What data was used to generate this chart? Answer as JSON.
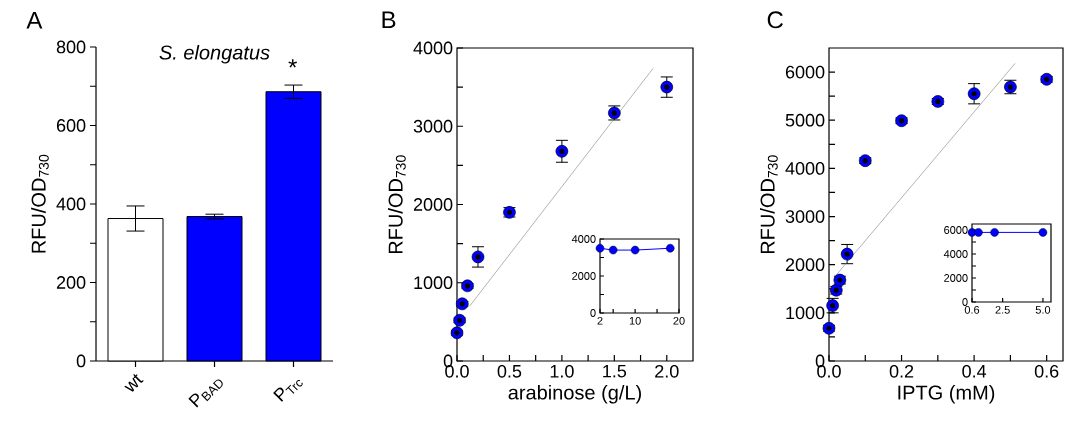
{
  "chart_data": [
    {
      "type": "bar",
      "title": "S. elongatus",
      "ylabel": "RFU/OD$_{730}$",
      "annotations": [
        "A",
        "*"
      ],
      "categories": [
        "wt",
        "P$_{BAD}$",
        "P$_{Trc}$"
      ],
      "values": [
        363,
        368,
        686
      ],
      "errors": [
        32,
        6,
        17
      ],
      "colors": [
        "#ffffff",
        "#0000ff",
        "#0000ff"
      ],
      "ylim": [
        0,
        800
      ],
      "yticks": [
        0,
        {
          "value": 100,
          "label": null
        },
        200,
        {
          "value": 300,
          "label": null
        },
        400,
        {
          "value": 500,
          "label": null
        },
        600,
        {
          "value": 700,
          "label": null
        },
        800
      ]
    },
    {
      "type": "scatter",
      "xlabel": "arabinose (g/L)",
      "ylabel": "RFU/OD$_{730}$",
      "annotations": [
        "B"
      ],
      "marker": "circle",
      "xlim": [
        0,
        2.25
      ],
      "ylim": [
        0,
        4000
      ],
      "xticks": [
        {
          "value": 0,
          "label": "0.0"
        },
        {
          "value": 0.25,
          "label": null
        },
        {
          "value": 0.5,
          "label": "0.5"
        },
        {
          "value": 0.75,
          "label": null
        },
        {
          "value": 1,
          "label": "1.0"
        },
        {
          "value": 1.25,
          "label": null
        },
        {
          "value": 1.5,
          "label": "1.5"
        },
        {
          "value": 1.75,
          "label": null
        },
        {
          "value": 2,
          "label": "2.0"
        }
      ],
      "yticks": [
        0,
        {
          "value": 500,
          "label": null
        },
        1000,
        {
          "value": 1500,
          "label": null
        },
        2000,
        {
          "value": 2500,
          "label": null
        },
        3000,
        {
          "value": 3500,
          "label": null
        },
        4000
      ],
      "series": [
        {
          "type": "scatter",
          "color": "#0000ff",
          "x": [
            0,
            0.025,
            0.05,
            0.1,
            0.2,
            0.5,
            1,
            1.5,
            2
          ],
          "values": [
            360,
            520,
            730,
            960,
            1330,
            1900,
            2680,
            3170,
            3500
          ],
          "errors": [
            30,
            30,
            30,
            30,
            130,
            60,
            140,
            90,
            130
          ]
        },
        {
          "type": "line",
          "marker": "none",
          "color": "#808080",
          "x": [
            0.12,
            1.87
          ],
          "values": [
            700,
            3740
          ]
        }
      ]
    },
    {
      "type": "line",
      "marker": "circle",
      "xlim": [
        2,
        20
      ],
      "ylim": [
        0,
        4000
      ],
      "xticks": [
        2,
        {
          "value": 5,
          "label": null
        },
        10,
        {
          "value": 15,
          "label": null
        },
        20
      ],
      "yticks": [
        0,
        {
          "value": 1000,
          "label": null
        },
        2000,
        {
          "value": 3000,
          "label": null
        },
        4000
      ],
      "series": [
        {
          "color": "#0000ff",
          "x": [
            2,
            5,
            10,
            18
          ],
          "values": [
            3500,
            3400,
            3400,
            3500
          ]
        }
      ]
    },
    {
      "type": "scatter",
      "xlabel": "IPTG (mM)",
      "ylabel": "RFU/OD$_{730}$",
      "annotations": [
        "C"
      ],
      "marker": "circle",
      "xlim": [
        0,
        0.645
      ],
      "ylim": [
        0,
        6500
      ],
      "xticks": [
        {
          "value": 0,
          "label": "0.0"
        },
        {
          "value": 0.1,
          "label": null
        },
        {
          "value": 0.2,
          "label": "0.2"
        },
        {
          "value": 0.3,
          "label": null
        },
        {
          "value": 0.4,
          "label": "0.4"
        },
        {
          "value": 0.5,
          "label": null
        },
        {
          "value": 0.6,
          "label": "0.6"
        }
      ],
      "yticks": [
        0,
        {
          "value": 500,
          "label": null
        },
        1000,
        {
          "value": 1500,
          "label": null
        },
        2000,
        {
          "value": 2500,
          "label": null
        },
        3000,
        {
          "value": 3500,
          "label": null
        },
        4000,
        {
          "value": 4500,
          "label": null
        },
        5000,
        {
          "value": 5500,
          "label": null
        },
        6000
      ],
      "series": [
        {
          "type": "scatter",
          "color": "#0000ff",
          "x": [
            0,
            0.01,
            0.02,
            0.03,
            0.05,
            0.1,
            0.2,
            0.3,
            0.4,
            0.5,
            0.6
          ],
          "values": [
            680,
            1150,
            1470,
            1680,
            2220,
            4160,
            4990,
            5390,
            5550,
            5690,
            5850
          ],
          "errors": [
            60,
            150,
            80,
            80,
            200,
            60,
            60,
            60,
            210,
            140,
            60
          ]
        },
        {
          "type": "line",
          "marker": "none",
          "color": "#808080",
          "x": [
            0.016,
            0.513
          ],
          "values": [
            1750,
            6180
          ]
        }
      ]
    },
    {
      "type": "line",
      "marker": "circle",
      "xlim": [
        0.6,
        5.5
      ],
      "ylim": [
        0,
        6500
      ],
      "xticks": [
        {
          "value": 0.6,
          "label": "0.6"
        },
        {
          "value": 2.5,
          "label": "2.5"
        },
        {
          "value": 5,
          "label": "5.0"
        }
      ],
      "yticks": [
        0,
        {
          "value": 1000,
          "label": null
        },
        2000,
        {
          "value": 3000,
          "label": null
        },
        4000,
        {
          "value": 5000,
          "label": null
        },
        6000
      ],
      "series": [
        {
          "color": "#0000ff",
          "x": [
            0.6,
            1,
            2,
            5
          ],
          "values": [
            5800,
            5800,
            5800,
            5800
          ]
        }
      ]
    }
  ]
}
